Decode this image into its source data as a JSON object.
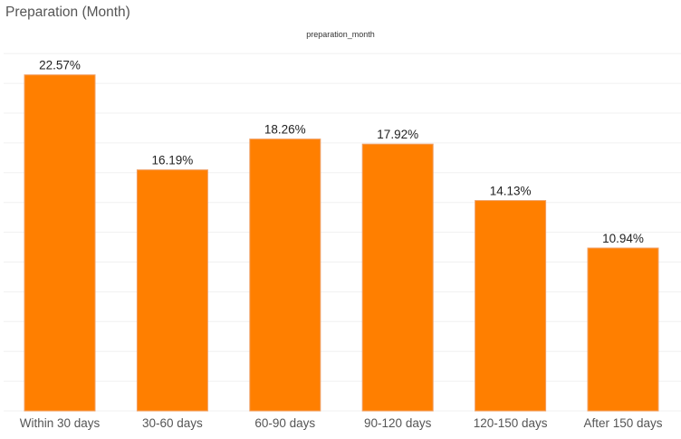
{
  "sheet_title": "Preparation (Month)",
  "field_header": "preparation_month",
  "colors": {
    "bar": "#ff7f00",
    "bar_edge": "#f0a066",
    "gridline": "#f0f0f0",
    "label": "#222222",
    "tick_label": "#555555"
  },
  "chart_data": {
    "type": "bar",
    "title": "",
    "xlabel": "",
    "ylabel": "",
    "categories": [
      "Within 30 days",
      "30-60 days",
      "60-90 days",
      "90-120 days",
      "120-150 days",
      "After 150 days"
    ],
    "values": [
      22.57,
      16.19,
      18.26,
      17.92,
      14.13,
      10.94
    ],
    "value_labels": [
      "22.57%",
      "16.19%",
      "18.26%",
      "17.92%",
      "14.13%",
      "10.94%"
    ],
    "ylim": [
      0,
      24
    ],
    "grid": true,
    "legend": "none"
  }
}
